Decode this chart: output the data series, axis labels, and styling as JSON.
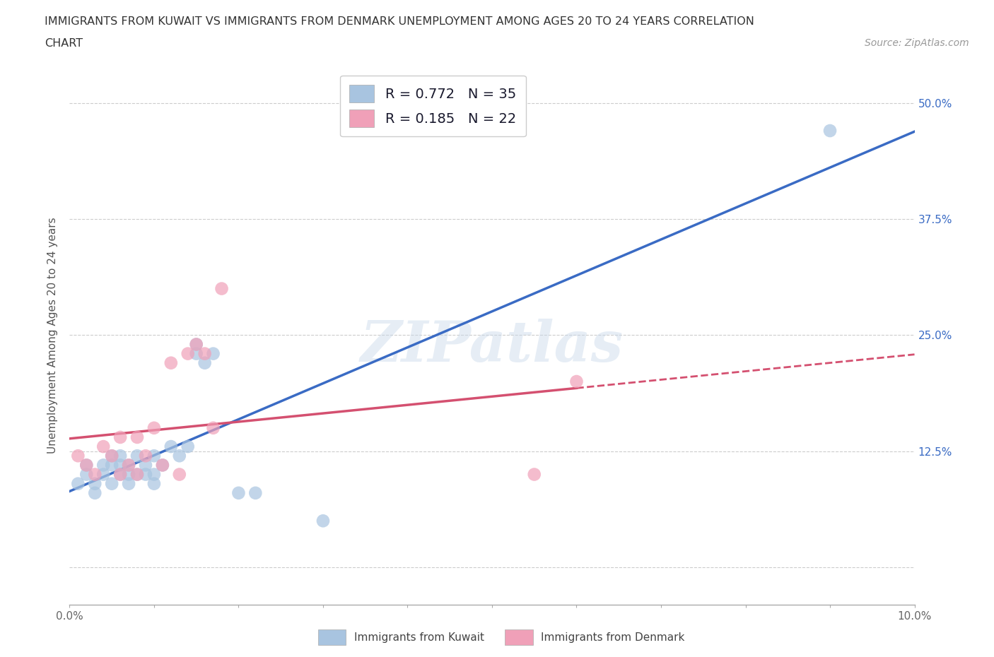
{
  "title_line1": "IMMIGRANTS FROM KUWAIT VS IMMIGRANTS FROM DENMARK UNEMPLOYMENT AMONG AGES 20 TO 24 YEARS CORRELATION",
  "title_line2": "CHART",
  "source_text": "Source: ZipAtlas.com",
  "ylabel": "Unemployment Among Ages 20 to 24 years",
  "xlim": [
    0.0,
    0.1
  ],
  "ylim": [
    -0.04,
    0.54
  ],
  "xticks": [
    0.0,
    0.01,
    0.02,
    0.03,
    0.04,
    0.05,
    0.06,
    0.07,
    0.08,
    0.09,
    0.1
  ],
  "xticklabels": [
    "0.0%",
    "",
    "",
    "",
    "",
    "",
    "",
    "",
    "",
    "",
    "10.0%"
  ],
  "yticks": [
    0.0,
    0.125,
    0.25,
    0.375,
    0.5
  ],
  "yticklabels": [
    "",
    "12.5%",
    "25.0%",
    "37.5%",
    "50.0%"
  ],
  "kuwait_color": "#a8c4e0",
  "denmark_color": "#f0a0b8",
  "kuwait_line_color": "#3a6bc4",
  "denmark_line_color": "#d45070",
  "legend_R_kuwait": "0.772",
  "legend_N_kuwait": "35",
  "legend_R_denmark": "0.185",
  "legend_N_denmark": "22",
  "watermark": "ZIPatlas",
  "kuwait_scatter_x": [
    0.001,
    0.002,
    0.002,
    0.003,
    0.003,
    0.004,
    0.004,
    0.005,
    0.005,
    0.005,
    0.006,
    0.006,
    0.006,
    0.007,
    0.007,
    0.007,
    0.008,
    0.008,
    0.009,
    0.009,
    0.01,
    0.01,
    0.01,
    0.011,
    0.012,
    0.013,
    0.014,
    0.015,
    0.015,
    0.016,
    0.017,
    0.02,
    0.022,
    0.03,
    0.09
  ],
  "kuwait_scatter_y": [
    0.09,
    0.1,
    0.11,
    0.09,
    0.08,
    0.1,
    0.11,
    0.09,
    0.11,
    0.12,
    0.1,
    0.11,
    0.12,
    0.09,
    0.1,
    0.11,
    0.1,
    0.12,
    0.1,
    0.11,
    0.09,
    0.1,
    0.12,
    0.11,
    0.13,
    0.12,
    0.13,
    0.23,
    0.24,
    0.22,
    0.23,
    0.08,
    0.08,
    0.05,
    0.47
  ],
  "denmark_scatter_x": [
    0.001,
    0.002,
    0.003,
    0.004,
    0.005,
    0.006,
    0.006,
    0.007,
    0.008,
    0.008,
    0.009,
    0.01,
    0.011,
    0.012,
    0.013,
    0.014,
    0.015,
    0.016,
    0.017,
    0.018,
    0.055,
    0.06
  ],
  "denmark_scatter_y": [
    0.12,
    0.11,
    0.1,
    0.13,
    0.12,
    0.1,
    0.14,
    0.11,
    0.1,
    0.14,
    0.12,
    0.15,
    0.11,
    0.22,
    0.1,
    0.23,
    0.24,
    0.23,
    0.15,
    0.3,
    0.1,
    0.2
  ],
  "background_color": "#ffffff",
  "grid_color": "#cccccc"
}
